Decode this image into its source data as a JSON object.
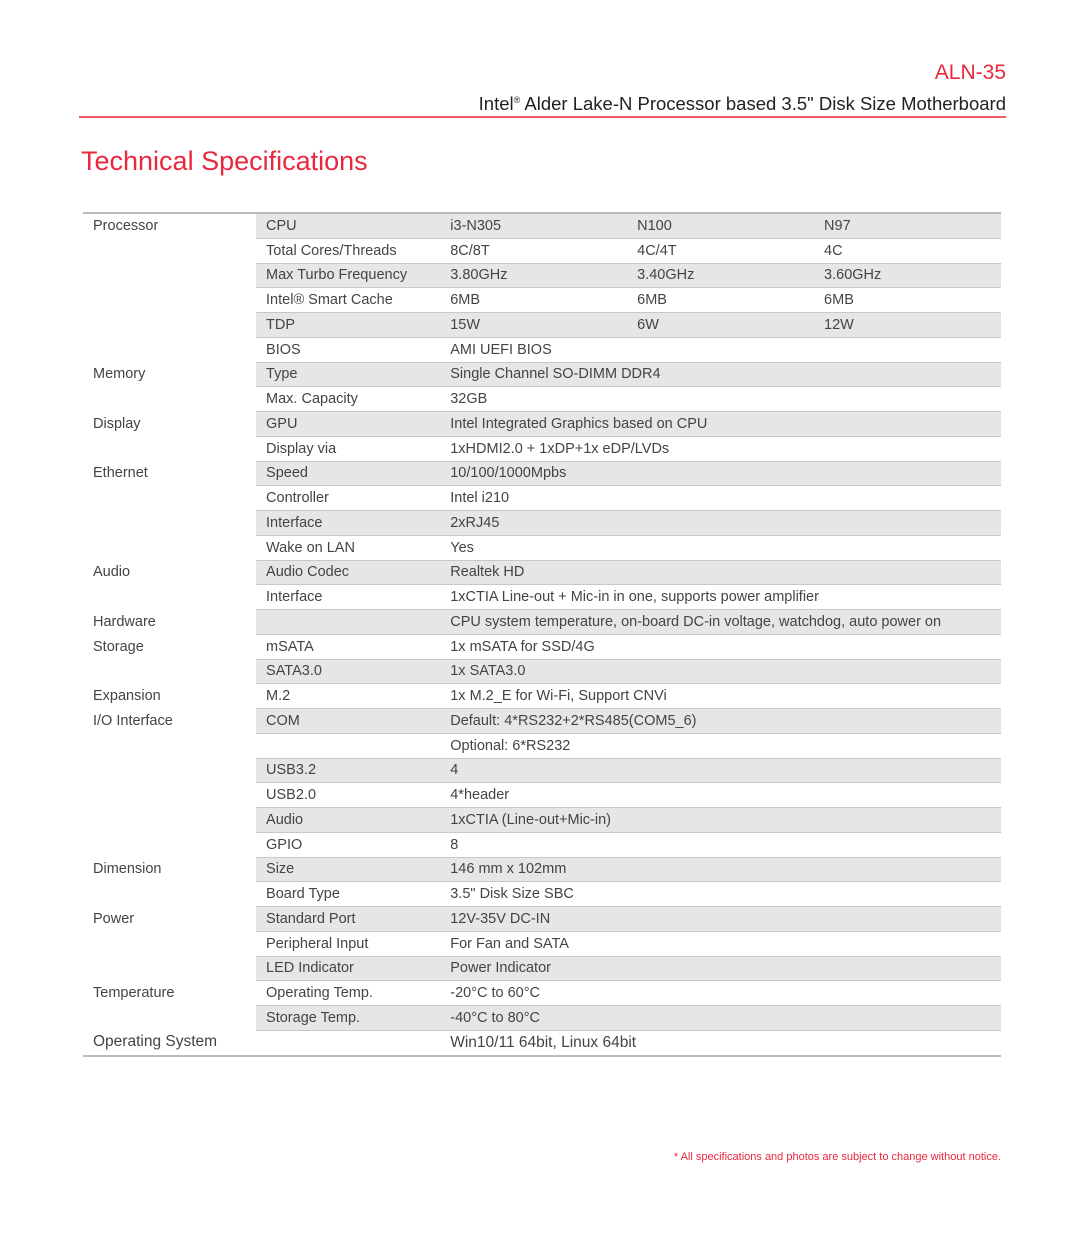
{
  "header": {
    "model": "ALN-35",
    "subtitle_pre": "Intel",
    "subtitle_reg": "®",
    "subtitle_post": " Alder Lake-N Processor based 3.5\" Disk Size Motherboard"
  },
  "title": "Technical Specifications",
  "colors": {
    "accent": "#e8283e",
    "row_shade": "#e6e6e6"
  },
  "rows": [
    {
      "group": "Processor",
      "label": "CPU",
      "values": [
        "i3-N305",
        "N100",
        "N97"
      ]
    },
    {
      "group": "",
      "label": "Total Cores/Threads",
      "values": [
        "8C/8T",
        "4C/4T",
        "4C"
      ]
    },
    {
      "group": "",
      "label": "Max Turbo Frequency",
      "values": [
        "3.80GHz",
        "3.40GHz",
        "3.60GHz"
      ]
    },
    {
      "group": "",
      "label": "Intel® Smart Cache",
      "values": [
        "6MB",
        "6MB",
        "6MB"
      ]
    },
    {
      "group": "",
      "label": "TDP",
      "values": [
        "15W",
        "6W",
        "12W"
      ]
    },
    {
      "group": "",
      "label": "BIOS",
      "values": [
        "AMI UEFI BIOS"
      ]
    },
    {
      "group": "Memory",
      "label": "Type",
      "values": [
        "Single Channel SO-DIMM DDR4"
      ]
    },
    {
      "group": "",
      "label": "Max. Capacity",
      "values": [
        "32GB"
      ]
    },
    {
      "group": "Display",
      "label": "GPU",
      "values": [
        "Intel Integrated Graphics based on CPU"
      ]
    },
    {
      "group": "",
      "label": "Display via",
      "values": [
        "1xHDMI2.0 + 1xDP+1x eDP/LVDs"
      ]
    },
    {
      "group": "Ethernet",
      "label": "Speed",
      "values": [
        "10/100/1000Mpbs"
      ]
    },
    {
      "group": "",
      "label": "Controller",
      "values": [
        "Intel i210"
      ]
    },
    {
      "group": "",
      "label": "Interface",
      "values": [
        "2xRJ45"
      ]
    },
    {
      "group": "",
      "label": "Wake on LAN",
      "values": [
        "Yes"
      ]
    },
    {
      "group": "Audio",
      "label": "Audio Codec",
      "values": [
        "Realtek HD"
      ]
    },
    {
      "group": "",
      "label": "Interface",
      "values": [
        "1xCTIA Line-out + Mic-in in one, supports power amplifier"
      ]
    },
    {
      "group": "Hardware",
      "label": "",
      "values": [
        "CPU system temperature, on-board DC-in voltage, watchdog, auto power on"
      ]
    },
    {
      "group": "Storage",
      "label": "mSATA",
      "values": [
        "1x mSATA for SSD/4G"
      ]
    },
    {
      "group": "",
      "label": "SATA3.0",
      "values": [
        "1x SATA3.0"
      ]
    },
    {
      "group": "Expansion",
      "label": "M.2",
      "values": [
        "1x M.2_E for Wi-Fi, Support CNVi"
      ]
    },
    {
      "group": "I/O Interface",
      "label": "COM",
      "values": [
        "Default: 4*RS232+2*RS485(COM5_6)"
      ]
    },
    {
      "group": "",
      "label": "",
      "values": [
        "Optional: 6*RS232"
      ]
    },
    {
      "group": "",
      "label": "USB3.2",
      "values": [
        "4"
      ]
    },
    {
      "group": "",
      "label": "USB2.0",
      "values": [
        "4*header"
      ]
    },
    {
      "group": "",
      "label": "Audio",
      "values": [
        "1xCTIA (Line-out+Mic-in)"
      ]
    },
    {
      "group": "",
      "label": "GPIO",
      "values": [
        "8"
      ]
    },
    {
      "group": "Dimension",
      "label": "Size",
      "values": [
        "146 mm x 102mm"
      ]
    },
    {
      "group": "",
      "label": "Board Type",
      "values": [
        "3.5\" Disk Size SBC"
      ]
    },
    {
      "group": "Power",
      "label": "Standard Port",
      "values": [
        "12V-35V DC-IN"
      ]
    },
    {
      "group": "",
      "label": "Peripheral Input",
      "values": [
        "For Fan and SATA"
      ]
    },
    {
      "group": "",
      "label": "LED Indicator",
      "values": [
        "Power Indicator"
      ]
    },
    {
      "group": "Temperature",
      "label": "Operating Temp.",
      "values": [
        "-20°C to 60°C"
      ]
    },
    {
      "group": "",
      "label": "Storage Temp.",
      "values": [
        "-40°C to 80°C"
      ]
    },
    {
      "group": "Operating System",
      "label": "",
      "values": [
        "Win10/11 64bit, Linux 64bit"
      ]
    }
  ],
  "footer": "* All specifications and photos are subject to change without notice."
}
